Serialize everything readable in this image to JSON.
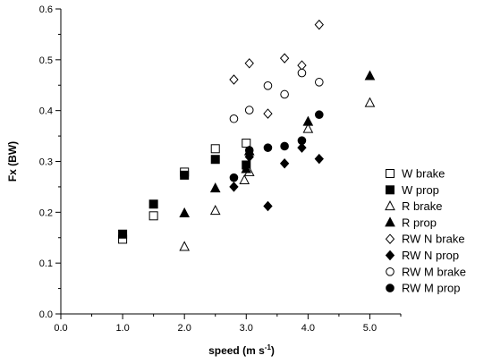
{
  "chart_data": {
    "type": "scatter",
    "title": "",
    "xlabel": "speed (m s",
    "xlabel_sup": "-1",
    "xlabel_close": ")",
    "ylabel": "Fx (BW)",
    "xlim": [
      0,
      5.5
    ],
    "ylim": [
      0,
      0.6
    ],
    "xticks": [
      "0.0",
      "1.0",
      "2.0",
      "3.0",
      "4.0",
      "5.0"
    ],
    "xtick_values": [
      0,
      1,
      2,
      3,
      4,
      5
    ],
    "yticks": [
      "0.0",
      "0.1",
      "0.2",
      "0.3",
      "0.4",
      "0.5",
      "0.6"
    ],
    "ytick_values": [
      0,
      0.1,
      0.2,
      0.3,
      0.4,
      0.5,
      0.6
    ],
    "grid": false,
    "legend_position": "right",
    "series": [
      {
        "name": "W brake",
        "marker": "square",
        "filled": false,
        "points": [
          [
            1.0,
            0.147
          ],
          [
            1.5,
            0.193
          ],
          [
            2.0,
            0.279
          ],
          [
            2.5,
            0.325
          ],
          [
            3.0,
            0.336
          ]
        ]
      },
      {
        "name": "W prop",
        "marker": "square",
        "filled": true,
        "points": [
          [
            1.0,
            0.157
          ],
          [
            1.5,
            0.216
          ],
          [
            2.0,
            0.273
          ],
          [
            2.5,
            0.304
          ],
          [
            3.0,
            0.293
          ]
        ]
      },
      {
        "name": "R brake",
        "marker": "triangle",
        "filled": false,
        "points": [
          [
            2.0,
            0.132
          ],
          [
            2.5,
            0.203
          ],
          [
            2.97,
            0.263
          ],
          [
            3.05,
            0.279
          ],
          [
            4.0,
            0.364
          ],
          [
            5.0,
            0.415
          ]
        ]
      },
      {
        "name": "R prop",
        "marker": "triangle",
        "filled": true,
        "points": [
          [
            2.0,
            0.198
          ],
          [
            2.5,
            0.247
          ],
          [
            3.0,
            0.285
          ],
          [
            3.05,
            0.32
          ],
          [
            4.0,
            0.378
          ],
          [
            5.0,
            0.468
          ]
        ]
      },
      {
        "name": "RW N brake",
        "marker": "diamond",
        "filled": false,
        "points": [
          [
            2.8,
            0.461
          ],
          [
            3.05,
            0.493
          ],
          [
            3.35,
            0.394
          ],
          [
            3.62,
            0.503
          ],
          [
            3.9,
            0.489
          ],
          [
            4.18,
            0.569
          ]
        ]
      },
      {
        "name": "RW N prop",
        "marker": "diamond",
        "filled": true,
        "points": [
          [
            2.8,
            0.25
          ],
          [
            3.05,
            0.309
          ],
          [
            3.35,
            0.212
          ],
          [
            3.62,
            0.296
          ],
          [
            3.9,
            0.327
          ],
          [
            4.18,
            0.305
          ]
        ]
      },
      {
        "name": "RW M brake",
        "marker": "circle",
        "filled": false,
        "points": [
          [
            2.8,
            0.384
          ],
          [
            3.05,
            0.401
          ],
          [
            3.35,
            0.449
          ],
          [
            3.62,
            0.432
          ],
          [
            3.9,
            0.474
          ],
          [
            4.18,
            0.456
          ]
        ]
      },
      {
        "name": "RW M prop",
        "marker": "circle",
        "filled": true,
        "points": [
          [
            2.8,
            0.268
          ],
          [
            3.05,
            0.322
          ],
          [
            3.35,
            0.327
          ],
          [
            3.62,
            0.33
          ],
          [
            3.9,
            0.341
          ],
          [
            4.18,
            0.392
          ]
        ]
      }
    ]
  }
}
